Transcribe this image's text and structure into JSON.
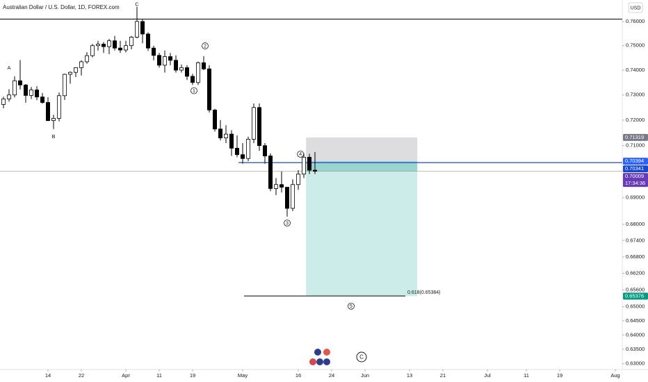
{
  "chart_data": {
    "type": "candlestick",
    "title": "Australian Dollar / U.S. Dollar, 1D, FOREX.com",
    "currency_button": "USD",
    "log": true,
    "ylim": [
      0.628,
      0.769
    ],
    "yticks": [
      {
        "value": 0.76,
        "label": "0.76000"
      },
      {
        "value": 0.75,
        "label": "0.75000"
      },
      {
        "value": 0.74,
        "label": "0.74000"
      },
      {
        "value": 0.73,
        "label": "0.73000"
      },
      {
        "value": 0.72,
        "label": "0.72000"
      },
      {
        "value": 0.71,
        "label": "0.71000"
      },
      {
        "value": 0.69,
        "label": "0.69000"
      },
      {
        "value": 0.68,
        "label": "0.68000"
      },
      {
        "value": 0.674,
        "label": "0.67400"
      },
      {
        "value": 0.668,
        "label": "0.66800"
      },
      {
        "value": 0.662,
        "label": "0.66200"
      },
      {
        "value": 0.656,
        "label": "0.65600"
      },
      {
        "value": 0.65,
        "label": "0.65000"
      },
      {
        "value": 0.645,
        "label": "0.64500"
      },
      {
        "value": 0.64,
        "label": "0.64000"
      },
      {
        "value": 0.635,
        "label": "0.63500"
      },
      {
        "value": 0.63,
        "label": "0.63000"
      }
    ],
    "xlim": [
      -0.625,
      111.25
    ],
    "xticks": [
      {
        "value": 8,
        "label": "14"
      },
      {
        "value": 14,
        "label": "22"
      },
      {
        "value": 22,
        "label": "Apr"
      },
      {
        "value": 28,
        "label": "11"
      },
      {
        "value": 34,
        "label": "19"
      },
      {
        "value": 43,
        "label": "May"
      },
      {
        "value": 53,
        "label": "16"
      },
      {
        "value": 59,
        "label": "24"
      },
      {
        "value": 65,
        "label": "Jun"
      },
      {
        "value": 73,
        "label": "13"
      },
      {
        "value": 79,
        "label": "21"
      },
      {
        "value": 87,
        "label": "Jul"
      },
      {
        "value": 94,
        "label": "11"
      },
      {
        "value": 100,
        "label": "19"
      },
      {
        "value": 110,
        "label": "Aug"
      }
    ],
    "up_color": "#ffffff",
    "down_color": "#000000",
    "open": [
      0.7262,
      0.7284,
      0.73,
      0.7357,
      0.734,
      0.7298,
      0.732,
      0.7292,
      0.727,
      0.7198,
      0.7207,
      0.7297,
      0.7383,
      0.7391,
      0.741,
      0.7434,
      0.7459,
      0.75,
      0.7506,
      0.7496,
      0.752,
      0.749,
      0.7482,
      0.75,
      0.7535,
      0.76,
      0.7548,
      0.749,
      0.746,
      0.742,
      0.7455,
      0.744,
      0.74,
      0.741,
      0.7375,
      0.735,
      0.743,
      0.7405,
      0.724,
      0.7165,
      0.713,
      0.7145,
      0.709,
      0.7065,
      0.705,
      0.7125,
      0.725,
      0.71,
      0.706,
      0.6935,
      0.695,
      0.694,
      0.686,
      0.695,
      0.699,
      0.7055,
      0.7005
    ],
    "high": [
      0.7293,
      0.7323,
      0.7375,
      0.7441,
      0.7344,
      0.7332,
      0.7335,
      0.7308,
      0.7291,
      0.7221,
      0.731,
      0.7386,
      0.7395,
      0.7412,
      0.744,
      0.7473,
      0.7507,
      0.752,
      0.7515,
      0.7528,
      0.754,
      0.752,
      0.752,
      0.754,
      0.7661,
      0.761,
      0.7555,
      0.75,
      0.747,
      0.748,
      0.747,
      0.746,
      0.7423,
      0.742,
      0.7385,
      0.7435,
      0.7457,
      0.742,
      0.7245,
      0.72,
      0.718,
      0.716,
      0.714,
      0.711,
      0.7135,
      0.7266,
      0.7266,
      0.711,
      0.707,
      0.6975,
      0.7,
      0.694,
      0.697,
      0.7005,
      0.707,
      0.7068,
      0.7075
    ],
    "low": [
      0.7247,
      0.7273,
      0.729,
      0.7322,
      0.7269,
      0.7284,
      0.7279,
      0.7265,
      0.7196,
      0.7165,
      0.7195,
      0.728,
      0.7345,
      0.7372,
      0.7378,
      0.7426,
      0.7452,
      0.748,
      0.747,
      0.7465,
      0.748,
      0.747,
      0.7472,
      0.7485,
      0.753,
      0.751,
      0.7478,
      0.744,
      0.741,
      0.739,
      0.742,
      0.739,
      0.739,
      0.736,
      0.734,
      0.734,
      0.74,
      0.723,
      0.7155,
      0.712,
      0.711,
      0.706,
      0.7055,
      0.703,
      0.704,
      0.711,
      0.708,
      0.703,
      0.6925,
      0.691,
      0.692,
      0.6829,
      0.685,
      0.693,
      0.6975,
      0.699,
      0.699
    ],
    "close": [
      0.7284,
      0.73,
      0.7357,
      0.734,
      0.7298,
      0.732,
      0.7292,
      0.727,
      0.7198,
      0.7207,
      0.7297,
      0.7383,
      0.7391,
      0.741,
      0.7434,
      0.7459,
      0.75,
      0.7506,
      0.7496,
      0.752,
      0.749,
      0.7482,
      0.75,
      0.7535,
      0.76,
      0.7548,
      0.749,
      0.746,
      0.742,
      0.7455,
      0.744,
      0.74,
      0.741,
      0.7375,
      0.735,
      0.743,
      0.7405,
      0.724,
      0.7165,
      0.713,
      0.7145,
      0.709,
      0.7065,
      0.705,
      0.7125,
      0.725,
      0.71,
      0.706,
      0.6935,
      0.695,
      0.694,
      0.686,
      0.695,
      0.699,
      0.7055,
      0.7005,
      0.70009
    ],
    "annotations": [
      {
        "text": "A",
        "x": 1,
        "price": 0.741
      },
      {
        "text": "B",
        "x": 9,
        "price": 0.7135
      },
      {
        "text": "C",
        "x": 24,
        "price": 0.7672
      },
      {
        "text": "1",
        "x": 34.25,
        "price": 0.7317,
        "circled": true
      },
      {
        "text": "2",
        "x": 36.25,
        "price": 0.7499,
        "circled": true
      },
      {
        "text": "3",
        "x": 51,
        "price": 0.6805,
        "circled": true
      },
      {
        "text": "4",
        "x": 53.4,
        "price": 0.7067,
        "circled": true
      },
      {
        "text": "5",
        "x": 62.5,
        "price": 0.6502,
        "circled": true
      }
    ],
    "resistance_line": {
      "price": 0.761,
      "color": "#000000"
    },
    "entry_line": {
      "price": 0.70341,
      "x_start": 42.25,
      "color": "#1848cc"
    },
    "fib_line": {
      "price": 0.65384,
      "x": [
        43.25,
        72.25
      ],
      "label": "0.618(0.65384)",
      "color": "#000000"
    },
    "position": {
      "stop": 0.71319,
      "entry": 0.70394,
      "target": 0.65376,
      "x": [
        54.4,
        74.4
      ]
    },
    "price_labels": [
      {
        "value": 0.71319,
        "color": "#787b86"
      },
      {
        "value": 0.70394,
        "color": "#2962ff"
      },
      {
        "value": 0.70341,
        "color": "#1848cc"
      },
      {
        "value": 0.70009,
        "color": "#673ab7",
        "countdown": "17:34:36"
      },
      {
        "value": 0.65376,
        "color": "#089981"
      }
    ],
    "event_marker": "C"
  }
}
